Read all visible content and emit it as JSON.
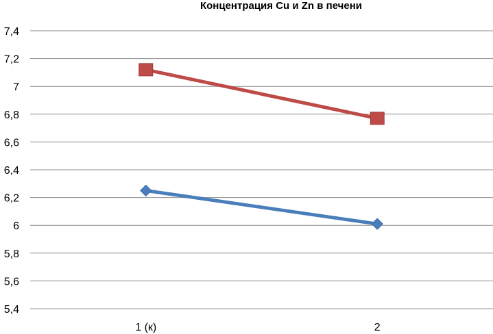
{
  "chart_data": {
    "type": "line",
    "title": "Концентрация  Cu и Zn в печени",
    "categories": [
      "1 (к)",
      "2"
    ],
    "series": [
      {
        "values": [
          6.25,
          6.01
        ],
        "color": "#4a7ebb",
        "marker": "diamond"
      },
      {
        "values": [
          7.12,
          6.77
        ],
        "color": "#be4b48",
        "marker": "square"
      }
    ],
    "ylim": [
      5.4,
      7.4
    ],
    "y_ticks": [
      "5,4",
      "5,6",
      "5,8",
      "6",
      "6,2",
      "6,4",
      "6,6",
      "6,8",
      "7",
      "7,2",
      "7,4"
    ],
    "grid": true,
    "legend": "none"
  }
}
